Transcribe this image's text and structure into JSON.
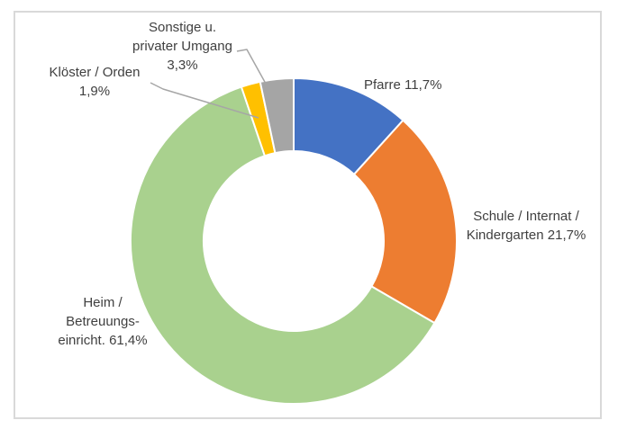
{
  "chart_data": {
    "type": "pie",
    "subtype": "donut",
    "categories": [
      "Pfarre",
      "Schule / Internat / Kindergarten",
      "Heim / Betreuungseinricht.",
      "Klöster / Orden",
      "Sonstige u. privater Umgang"
    ],
    "values": [
      11.7,
      21.7,
      61.4,
      1.9,
      3.3
    ],
    "value_labels": [
      "11,7%",
      "21,7%",
      "61,4%",
      "1,9%",
      "3,3%"
    ],
    "unit": "%",
    "colors": [
      "#4472C4",
      "#ED7D31",
      "#A9D18E",
      "#FFC000",
      "#A5A5A5"
    ],
    "slice_names": [
      "pfarre",
      "schule",
      "heim",
      "kloester",
      "sonstige"
    ],
    "start_angle_deg": 0,
    "direction": "clockwise",
    "donut_hole_ratio": 0.55,
    "title": "",
    "legend_position": "none",
    "data_labels": "outside-category-and-percent"
  },
  "labels": {
    "sonstige": {
      "line1": "Sonstige u.",
      "line2": "privater Umgang",
      "line3": "3,3%"
    },
    "kloester": {
      "line1": "Klöster / Orden",
      "line2": "1,9%"
    },
    "pfarre": {
      "line1": "Pfarre 11,7%"
    },
    "schule": {
      "line1": "Schule / Internat /",
      "line2": "Kindergarten 21,7%"
    },
    "heim": {
      "line1": "Heim /",
      "line2": "Betreuungs-",
      "line3": "einricht. 61,4%"
    }
  },
  "style": {
    "label_color": "#404040",
    "frame_border_color": "#D9D9D9",
    "leader_line_color": "#A6A6A6",
    "slice_border_color": "#FFFFFF",
    "background": "#FFFFFF"
  }
}
